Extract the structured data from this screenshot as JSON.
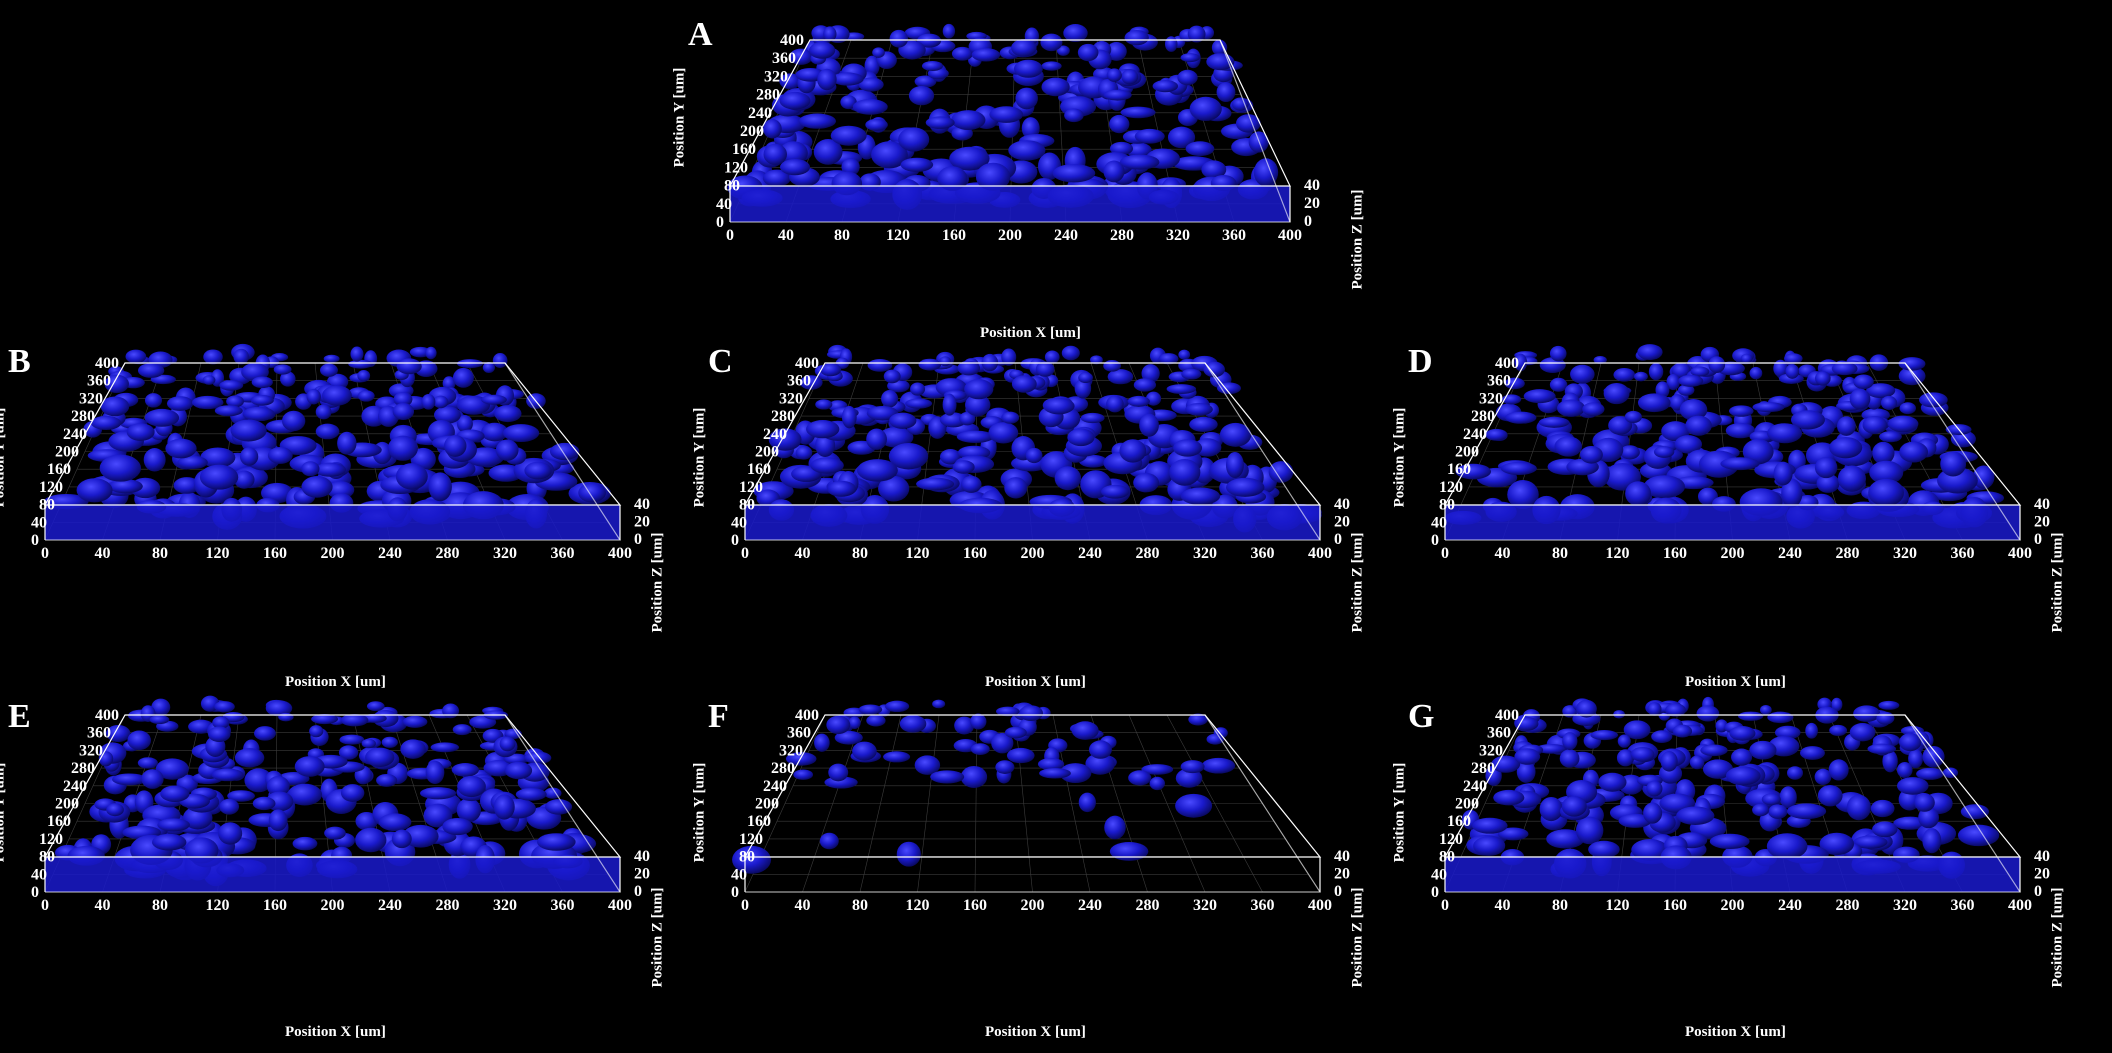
{
  "figure": {
    "axis_titles": {
      "x": "Position X [um]",
      "y": "Position Y [um]",
      "z": "Position Z [um]"
    },
    "x_ticks": [
      "0",
      "40",
      "80",
      "120",
      "160",
      "200",
      "240",
      "280",
      "320",
      "360",
      "400"
    ],
    "y_ticks": [
      "0",
      "40",
      "80",
      "120",
      "160",
      "200",
      "240",
      "280",
      "320",
      "360",
      "400"
    ],
    "z_ticks": [
      "0",
      "20",
      "40"
    ],
    "colors": {
      "background": "#000000",
      "surface": "#1a1acc",
      "surface_dark": "#0a0a66",
      "box": "#ffffff"
    },
    "panels": [
      {
        "id": "A",
        "letter": "A",
        "coverage": 0.9
      },
      {
        "id": "B",
        "letter": "B",
        "coverage": 0.92
      },
      {
        "id": "C",
        "letter": "C",
        "coverage": 0.9
      },
      {
        "id": "D",
        "letter": "D",
        "coverage": 0.88
      },
      {
        "id": "E",
        "letter": "E",
        "coverage": 0.84
      },
      {
        "id": "F",
        "letter": "F",
        "coverage": 0.35
      },
      {
        "id": "G",
        "letter": "G",
        "coverage": 0.82
      }
    ]
  }
}
